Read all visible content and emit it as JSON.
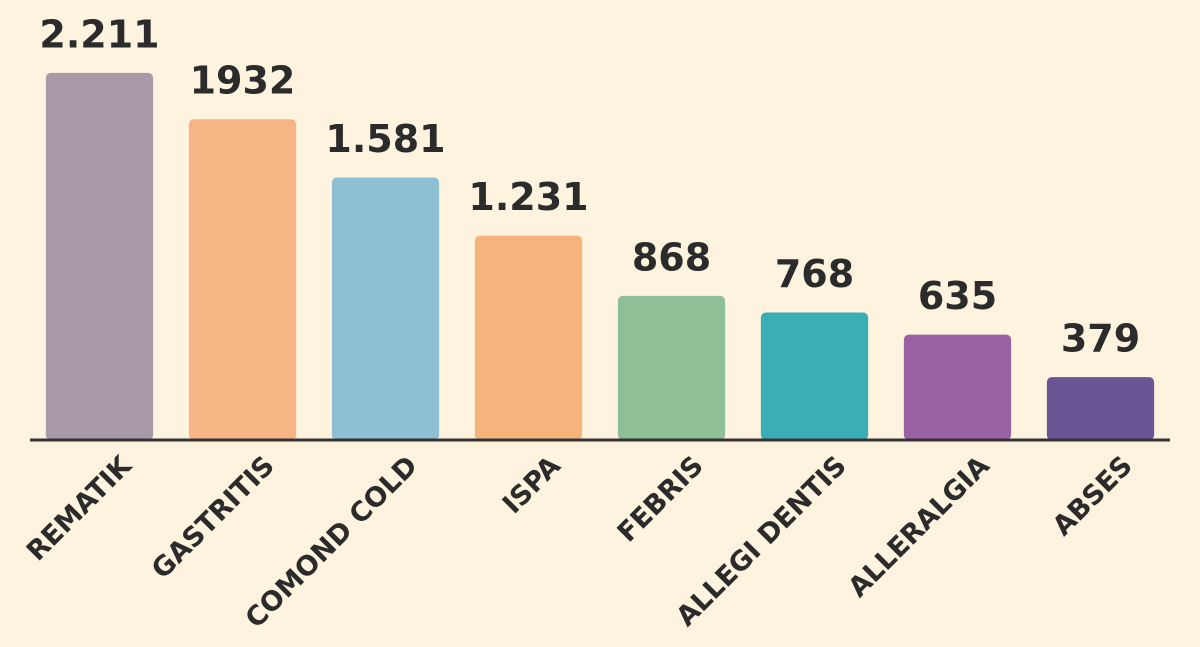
{
  "chart_data": {
    "type": "bar",
    "categories": [
      "REMATIK",
      "GASTRITIS",
      "COMOND COLD",
      "ISPA",
      "FEBRIS",
      "ALLEGI DENTIS",
      "ALLERALGIA",
      "ABSES"
    ],
    "values": [
      2211,
      1932,
      1581,
      1231,
      868,
      768,
      635,
      379
    ],
    "value_labels": [
      "2.211",
      "1932",
      "1.581",
      "1.231",
      "868",
      "768",
      "635",
      "379"
    ],
    "colors": [
      "#a898a8",
      "#f6b584",
      "#8fbfd3",
      "#f6b47c",
      "#8fbf95",
      "#3aaeb5",
      "#9b62a3",
      "#6a5596"
    ],
    "ylim": [
      0,
      2650
    ]
  }
}
